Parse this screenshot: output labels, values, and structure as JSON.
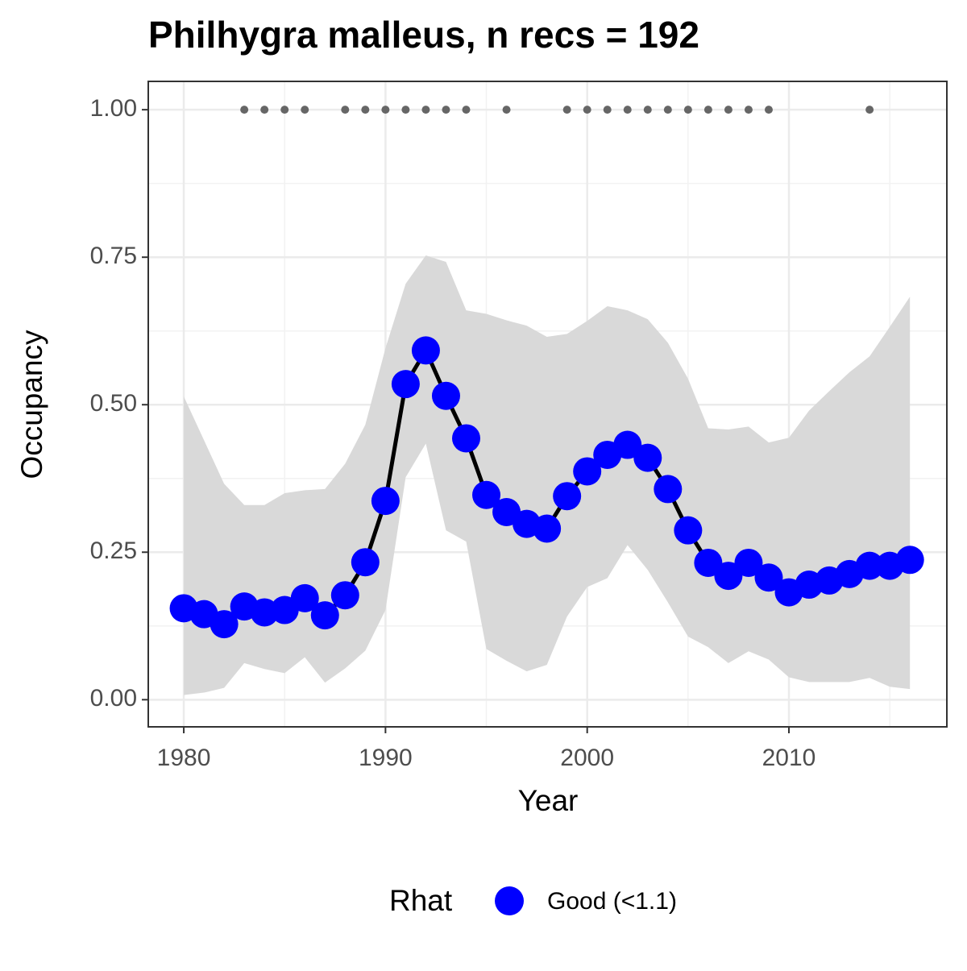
{
  "chart_data": {
    "type": "line",
    "title": "Philhygra malleus, n recs = 192",
    "xlabel": "Year",
    "ylabel": "Occupancy",
    "x": [
      1980,
      1981,
      1982,
      1983,
      1984,
      1985,
      1986,
      1987,
      1988,
      1989,
      1990,
      1991,
      1992,
      1993,
      1994,
      1995,
      1996,
      1997,
      1998,
      1999,
      2000,
      2001,
      2002,
      2003,
      2004,
      2005,
      2006,
      2007,
      2008,
      2009,
      2010,
      2011,
      2012,
      2013,
      2014,
      2015,
      2016
    ],
    "series": [
      {
        "name": "Good (<1.1)",
        "color": "#0000ff",
        "line_color": "#000000",
        "values": [
          0.155,
          0.145,
          0.128,
          0.158,
          0.148,
          0.152,
          0.172,
          0.143,
          0.177,
          0.233,
          0.337,
          0.535,
          0.592,
          0.515,
          0.443,
          0.347,
          0.318,
          0.298,
          0.29,
          0.345,
          0.387,
          0.415,
          0.432,
          0.41,
          0.357,
          0.287,
          0.232,
          0.21,
          0.232,
          0.207,
          0.182,
          0.195,
          0.202,
          0.213,
          0.227,
          0.227,
          0.237
        ]
      }
    ],
    "band": {
      "color": "#d9d9d9",
      "upper": [
        0.514,
        0.44,
        0.366,
        0.33,
        0.33,
        0.35,
        0.355,
        0.357,
        0.4,
        0.466,
        0.596,
        0.705,
        0.753,
        0.742,
        0.66,
        0.654,
        0.643,
        0.634,
        0.615,
        0.62,
        0.642,
        0.667,
        0.66,
        0.645,
        0.605,
        0.544,
        0.46,
        0.458,
        0.463,
        0.436,
        0.444,
        0.49,
        0.523,
        0.555,
        0.582,
        0.632,
        0.683
      ],
      "lower": [
        0.008,
        0.012,
        0.02,
        0.062,
        0.052,
        0.045,
        0.072,
        0.029,
        0.053,
        0.083,
        0.152,
        0.377,
        0.434,
        0.287,
        0.268,
        0.086,
        0.066,
        0.048,
        0.059,
        0.141,
        0.191,
        0.206,
        0.262,
        0.22,
        0.165,
        0.107,
        0.089,
        0.062,
        0.082,
        0.068,
        0.038,
        0.03,
        0.03,
        0.03,
        0.037,
        0.022,
        0.018
      ]
    },
    "records": {
      "color": "#666666",
      "y": 1,
      "x": [
        1983,
        1984,
        1985,
        1986,
        1988,
        1989,
        1990,
        1991,
        1992,
        1993,
        1994,
        1996,
        1999,
        2000,
        2001,
        2002,
        2003,
        2004,
        2005,
        2006,
        2007,
        2008,
        2009,
        2014
      ]
    },
    "xlim": [
      1978.24,
      2017.83
    ],
    "ylim": [
      -0.046,
      1.048
    ],
    "xticks": [
      1980,
      1990,
      2000,
      2010
    ],
    "yticks": [
      {
        "value": 0,
        "label": "0.00"
      },
      {
        "value": 0.25,
        "label": "0.25"
      },
      {
        "value": 0.5,
        "label": "0.50"
      },
      {
        "value": 0.75,
        "label": "0.75"
      },
      {
        "value": 1,
        "label": "1.00"
      }
    ],
    "grid": true,
    "legend_title": "Rhat",
    "legend_position": "bottom"
  }
}
